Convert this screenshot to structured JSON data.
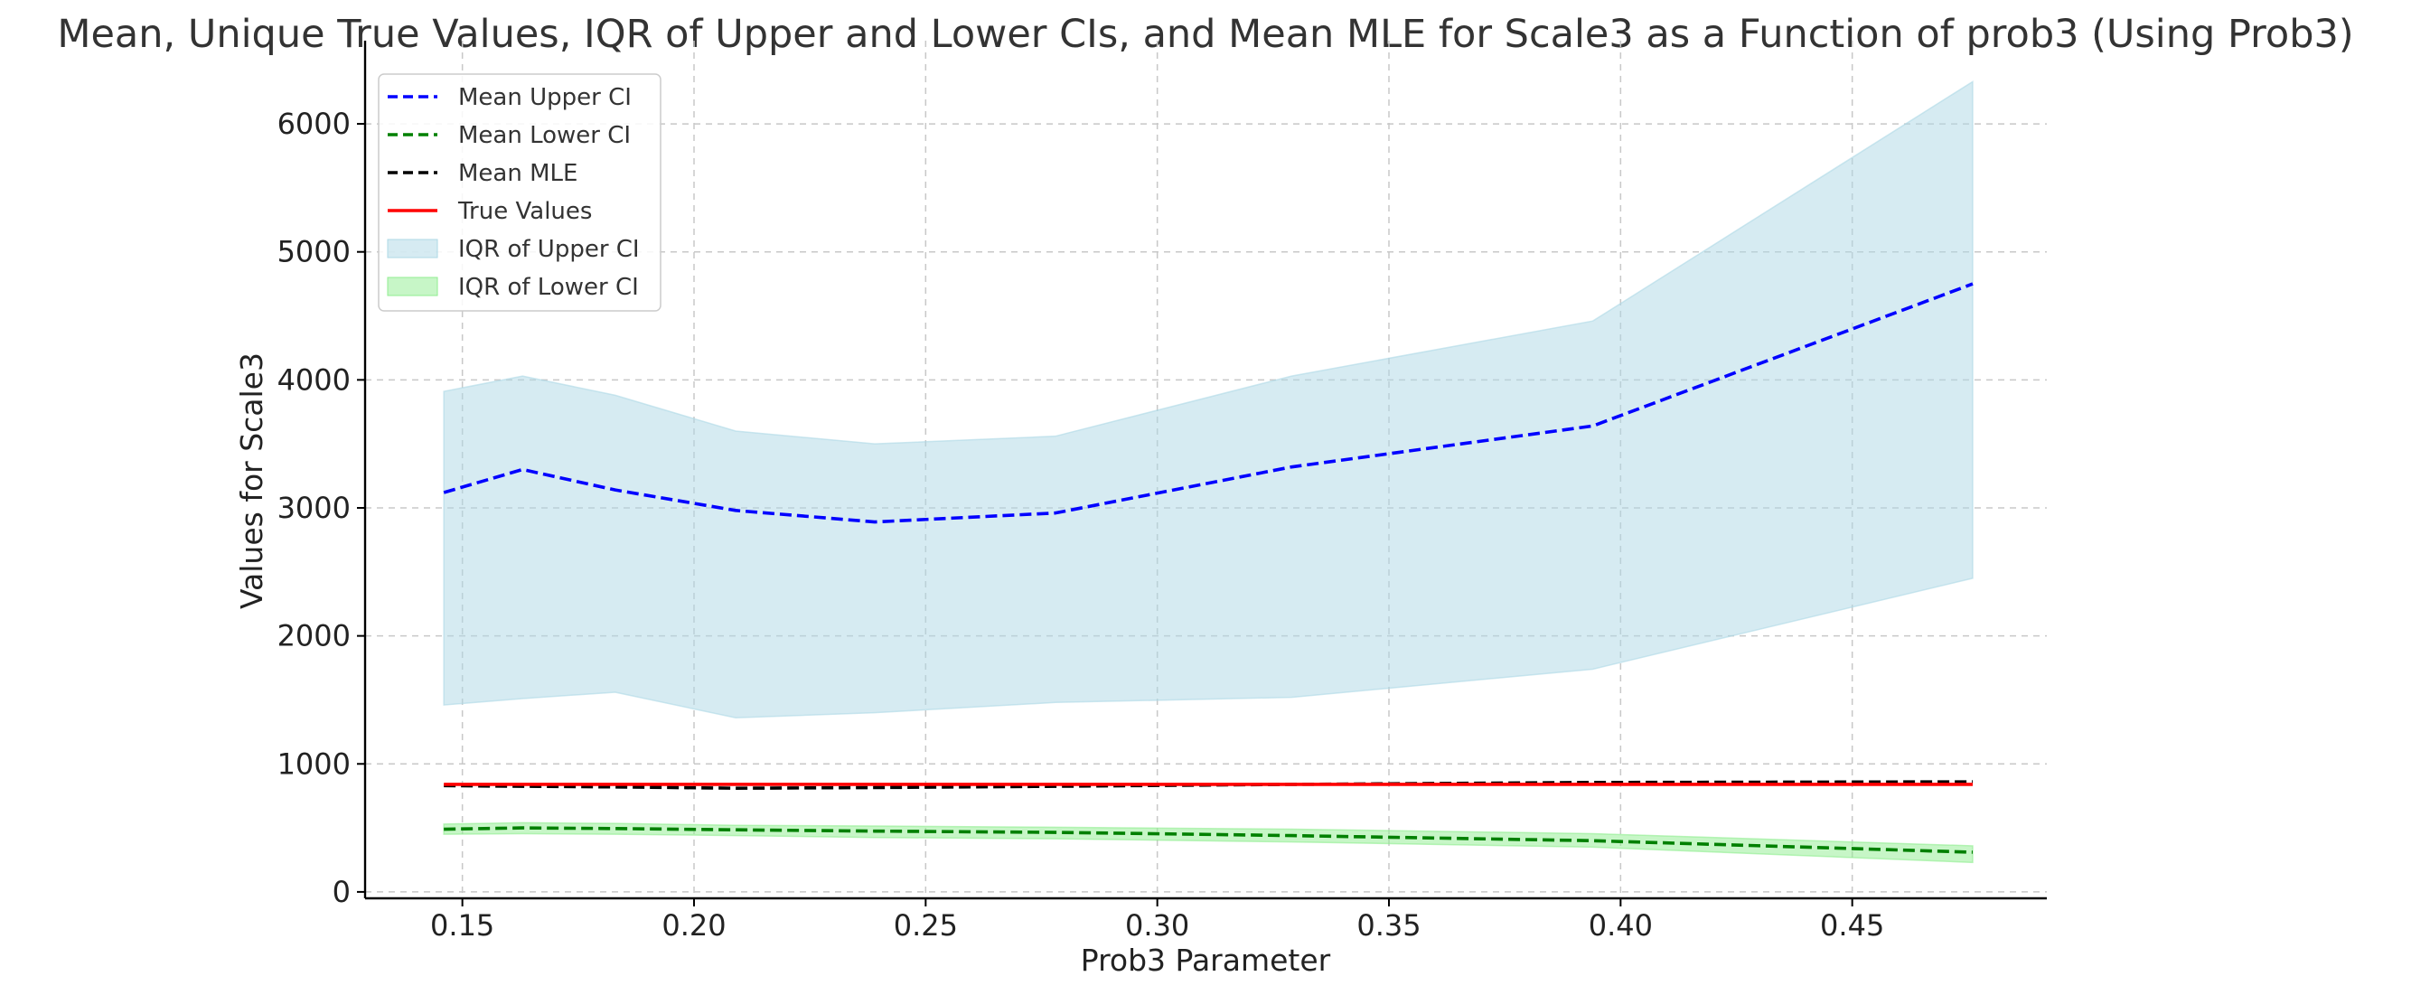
{
  "chart_data": {
    "type": "line",
    "title": "Mean, Unique True Values, IQR of Upper and Lower CIs, and Mean MLE for Scale3 as a Function of prob3 (Using Prob3)",
    "xlabel": "Prob3 Parameter",
    "ylabel": "Values for Scale3",
    "xlim": [
      0.129,
      0.492
    ],
    "ylim": [
      -50,
      6650
    ],
    "x_ticks": [
      0.15,
      0.2,
      0.25,
      0.3,
      0.35,
      0.4,
      0.45
    ],
    "x_tick_labels": [
      "0.15",
      "0.20",
      "0.25",
      "0.30",
      "0.35",
      "0.40",
      "0.45"
    ],
    "y_ticks": [
      0,
      1000,
      2000,
      3000,
      4000,
      5000,
      6000
    ],
    "y_tick_labels": [
      "0",
      "1000",
      "2000",
      "3000",
      "4000",
      "5000",
      "6000"
    ],
    "grid": true,
    "legend_position": "top-left",
    "x": [
      0.146,
      0.163,
      0.183,
      0.209,
      0.239,
      0.278,
      0.329,
      0.394,
      0.476
    ],
    "series": [
      {
        "name": "Mean Upper CI",
        "style": "dashed",
        "color": "#0000ff",
        "values": [
          3120,
          3300,
          3140,
          2980,
          2890,
          2960,
          3320,
          3640,
          4750
        ]
      },
      {
        "name": "Mean Lower CI",
        "style": "dashed",
        "color": "#008000",
        "values": [
          490,
          500,
          495,
          485,
          475,
          465,
          440,
          400,
          310
        ]
      },
      {
        "name": "Mean MLE",
        "style": "dashed",
        "color": "#000000",
        "values": [
          830,
          825,
          820,
          810,
          815,
          825,
          840,
          855,
          860
        ]
      },
      {
        "name": "True Values",
        "style": "solid",
        "color": "#ff0000",
        "values": [
          840,
          840,
          840,
          840,
          840,
          840,
          840,
          840,
          840
        ]
      }
    ],
    "bands": [
      {
        "name": "IQR of Upper CI",
        "color": "#add8e6",
        "lower": [
          1460,
          1510,
          1560,
          1360,
          1400,
          1480,
          1520,
          1740,
          2450
        ],
        "upper": [
          3910,
          4030,
          3880,
          3600,
          3500,
          3560,
          4030,
          4460,
          6330
        ]
      },
      {
        "name": "IQR of Lower CI",
        "color": "#90ee90",
        "lower": [
          450,
          455,
          450,
          440,
          425,
          415,
          390,
          350,
          230
        ],
        "upper": [
          530,
          540,
          535,
          520,
          515,
          505,
          490,
          455,
          360
        ]
      }
    ],
    "legend": [
      {
        "label": "Mean Upper CI",
        "kind": "dashed-line",
        "color": "#0000ff"
      },
      {
        "label": "Mean Lower CI",
        "kind": "dashed-line",
        "color": "#008000"
      },
      {
        "label": "Mean MLE",
        "kind": "dashed-line",
        "color": "#000000"
      },
      {
        "label": "True Values",
        "kind": "solid-line",
        "color": "#ff0000"
      },
      {
        "label": "IQR of Upper CI",
        "kind": "patch",
        "color": "#add8e6"
      },
      {
        "label": "IQR of Lower CI",
        "kind": "patch",
        "color": "#90ee90"
      }
    ]
  }
}
